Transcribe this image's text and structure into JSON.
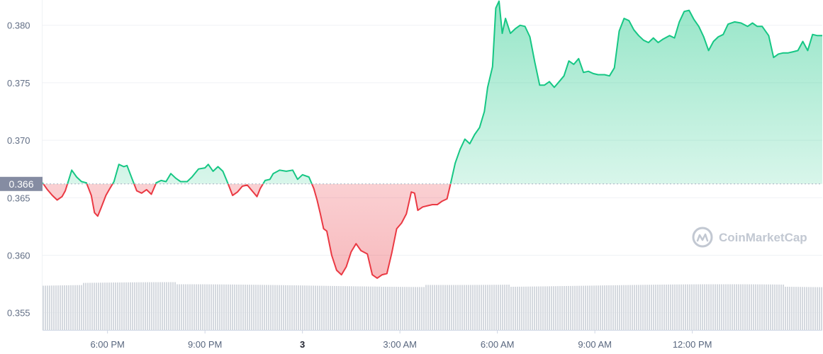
{
  "chart_data": {
    "type": "area",
    "title": "",
    "xlabel": "",
    "ylabel": "",
    "ylim": [
      0.3535,
      0.3822
    ],
    "yticks": [
      0.355,
      0.36,
      0.365,
      0.37,
      0.375,
      0.38
    ],
    "ytick_labels": [
      "0.355",
      "0.360",
      "0.365",
      "0.370",
      "0.375",
      "0.380"
    ],
    "xticks": [
      {
        "hour": 18,
        "label": "6:00 PM",
        "bold": false
      },
      {
        "hour": 21,
        "label": "9:00 PM",
        "bold": false
      },
      {
        "hour": 24,
        "label": "3",
        "bold": true
      },
      {
        "hour": 27,
        "label": "3:00 AM",
        "bold": false
      },
      {
        "hour": 30,
        "label": "6:00 AM",
        "bold": false
      },
      {
        "hour": 33,
        "label": "9:00 AM",
        "bold": false
      },
      {
        "hour": 36,
        "label": "12:00 PM",
        "bold": false
      }
    ],
    "xlim_hours": [
      16.0,
      40.0
    ],
    "baseline": {
      "value": 0.3662,
      "label": "0.366"
    },
    "up_color": "#16c784",
    "down_color": "#ea3943",
    "volume_color": "#d5d9df",
    "grid": true,
    "series": [
      {
        "points": [
          [
            16.0,
            0.3663
          ],
          [
            16.15,
            0.3657
          ],
          [
            16.3,
            0.3652
          ],
          [
            16.45,
            0.3648
          ],
          [
            16.6,
            0.3651
          ],
          [
            16.7,
            0.3656
          ],
          [
            16.8,
            0.3665
          ],
          [
            16.9,
            0.3674
          ],
          [
            17.05,
            0.3668
          ],
          [
            17.2,
            0.3664
          ],
          [
            17.35,
            0.3663
          ],
          [
            17.5,
            0.3652
          ],
          [
            17.6,
            0.3637
          ],
          [
            17.7,
            0.3634
          ],
          [
            17.8,
            0.3641
          ],
          [
            17.95,
            0.3652
          ],
          [
            18.05,
            0.3657
          ],
          [
            18.2,
            0.3664
          ],
          [
            18.35,
            0.3679
          ],
          [
            18.5,
            0.3677
          ],
          [
            18.6,
            0.3678
          ],
          [
            18.75,
            0.3667
          ],
          [
            18.9,
            0.3656
          ],
          [
            19.05,
            0.3654
          ],
          [
            19.2,
            0.3657
          ],
          [
            19.35,
            0.3653
          ],
          [
            19.5,
            0.3663
          ],
          [
            19.65,
            0.3665
          ],
          [
            19.8,
            0.3664
          ],
          [
            19.95,
            0.3671
          ],
          [
            20.1,
            0.3667
          ],
          [
            20.25,
            0.3664
          ],
          [
            20.45,
            0.3664
          ],
          [
            20.6,
            0.3668
          ],
          [
            20.8,
            0.3675
          ],
          [
            21.0,
            0.3676
          ],
          [
            21.1,
            0.3679
          ],
          [
            21.25,
            0.3673
          ],
          [
            21.4,
            0.3677
          ],
          [
            21.55,
            0.3673
          ],
          [
            21.7,
            0.3663
          ],
          [
            21.85,
            0.3652
          ],
          [
            22.0,
            0.3655
          ],
          [
            22.15,
            0.366
          ],
          [
            22.3,
            0.3661
          ],
          [
            22.45,
            0.3656
          ],
          [
            22.6,
            0.3651
          ],
          [
            22.7,
            0.3658
          ],
          [
            22.85,
            0.3665
          ],
          [
            23.0,
            0.3666
          ],
          [
            23.1,
            0.3671
          ],
          [
            23.3,
            0.3674
          ],
          [
            23.5,
            0.3673
          ],
          [
            23.7,
            0.3674
          ],
          [
            23.85,
            0.3666
          ],
          [
            24.0,
            0.367
          ],
          [
            24.2,
            0.3668
          ],
          [
            24.35,
            0.3658
          ],
          [
            24.45,
            0.3648
          ],
          [
            24.55,
            0.3636
          ],
          [
            24.65,
            0.3623
          ],
          [
            24.75,
            0.3621
          ],
          [
            24.9,
            0.36
          ],
          [
            25.05,
            0.3587
          ],
          [
            25.2,
            0.3583
          ],
          [
            25.35,
            0.359
          ],
          [
            25.5,
            0.3603
          ],
          [
            25.65,
            0.361
          ],
          [
            25.8,
            0.3604
          ],
          [
            26.0,
            0.3601
          ],
          [
            26.15,
            0.3583
          ],
          [
            26.3,
            0.358
          ],
          [
            26.45,
            0.3583
          ],
          [
            26.6,
            0.3584
          ],
          [
            26.75,
            0.3602
          ],
          [
            26.9,
            0.3623
          ],
          [
            27.05,
            0.3628
          ],
          [
            27.2,
            0.3636
          ],
          [
            27.35,
            0.3655
          ],
          [
            27.45,
            0.3654
          ],
          [
            27.55,
            0.3639
          ],
          [
            27.7,
            0.3642
          ],
          [
            27.85,
            0.3643
          ],
          [
            28.0,
            0.3644
          ],
          [
            28.15,
            0.3644
          ],
          [
            28.3,
            0.3647
          ],
          [
            28.45,
            0.3649
          ],
          [
            28.55,
            0.3661
          ],
          [
            28.7,
            0.368
          ],
          [
            28.85,
            0.3692
          ],
          [
            29.0,
            0.3701
          ],
          [
            29.15,
            0.3697
          ],
          [
            29.3,
            0.3705
          ],
          [
            29.45,
            0.3711
          ],
          [
            29.6,
            0.3725
          ],
          [
            29.7,
            0.3746
          ],
          [
            29.85,
            0.3764
          ],
          [
            29.95,
            0.3815
          ],
          [
            30.05,
            0.3821
          ],
          [
            30.15,
            0.3793
          ],
          [
            30.25,
            0.3806
          ],
          [
            30.4,
            0.3793
          ],
          [
            30.55,
            0.3797
          ],
          [
            30.7,
            0.38
          ],
          [
            30.85,
            0.3799
          ],
          [
            31.0,
            0.379
          ],
          [
            31.15,
            0.3768
          ],
          [
            31.3,
            0.3748
          ],
          [
            31.45,
            0.3748
          ],
          [
            31.6,
            0.3751
          ],
          [
            31.75,
            0.3746
          ],
          [
            31.9,
            0.3751
          ],
          [
            32.05,
            0.3756
          ],
          [
            32.2,
            0.3769
          ],
          [
            32.35,
            0.3766
          ],
          [
            32.5,
            0.3771
          ],
          [
            32.65,
            0.3759
          ],
          [
            32.8,
            0.376
          ],
          [
            32.95,
            0.3758
          ],
          [
            33.1,
            0.3757
          ],
          [
            33.3,
            0.3757
          ],
          [
            33.45,
            0.3756
          ],
          [
            33.6,
            0.3763
          ],
          [
            33.75,
            0.3795
          ],
          [
            33.9,
            0.3806
          ],
          [
            34.05,
            0.3804
          ],
          [
            34.2,
            0.3796
          ],
          [
            34.35,
            0.3791
          ],
          [
            34.5,
            0.3787
          ],
          [
            34.65,
            0.3785
          ],
          [
            34.8,
            0.3789
          ],
          [
            34.95,
            0.3785
          ],
          [
            35.1,
            0.3788
          ],
          [
            35.3,
            0.3791
          ],
          [
            35.45,
            0.3789
          ],
          [
            35.6,
            0.3803
          ],
          [
            35.75,
            0.3812
          ],
          [
            35.9,
            0.3813
          ],
          [
            36.05,
            0.3805
          ],
          [
            36.2,
            0.3799
          ],
          [
            36.35,
            0.379
          ],
          [
            36.5,
            0.3778
          ],
          [
            36.65,
            0.3786
          ],
          [
            36.8,
            0.379
          ],
          [
            36.95,
            0.3792
          ],
          [
            37.1,
            0.3801
          ],
          [
            37.3,
            0.3803
          ],
          [
            37.5,
            0.3802
          ],
          [
            37.7,
            0.3799
          ],
          [
            37.85,
            0.3802
          ],
          [
            38.0,
            0.3799
          ],
          [
            38.15,
            0.3799
          ],
          [
            38.35,
            0.3791
          ],
          [
            38.5,
            0.3772
          ],
          [
            38.65,
            0.3775
          ],
          [
            38.8,
            0.3776
          ],
          [
            38.95,
            0.3776
          ],
          [
            39.1,
            0.3777
          ],
          [
            39.25,
            0.3778
          ],
          [
            39.4,
            0.3786
          ],
          [
            39.55,
            0.3778
          ],
          [
            39.7,
            0.3792
          ],
          [
            39.85,
            0.3791
          ],
          [
            40.0,
            0.3791
          ]
        ]
      }
    ]
  },
  "watermark": {
    "text": "CoinMarketCap",
    "icon": "coinmarketcap-logo-icon"
  }
}
